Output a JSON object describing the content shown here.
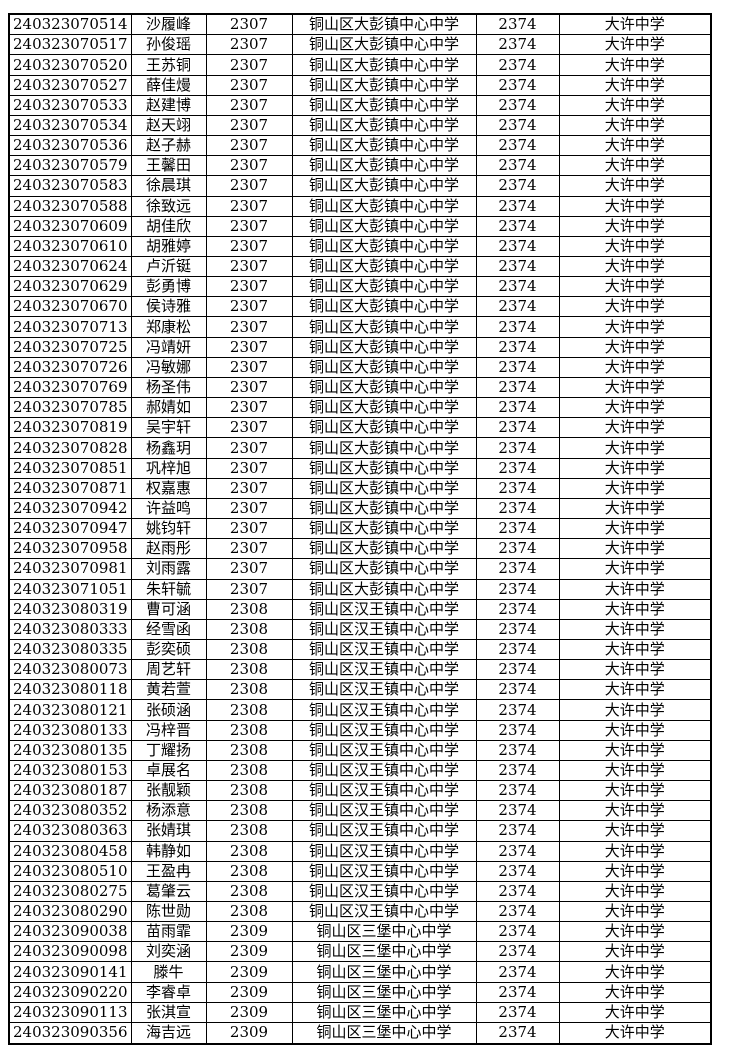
{
  "page": {
    "background_color": "#ffffff",
    "text_color": "#000000",
    "border_color": "#000000"
  },
  "table": {
    "column_keys": [
      "exam-number",
      "student-name",
      "school-code",
      "school-name",
      "destination-code",
      "destination-school"
    ],
    "rows": [
      [
        "240323070514",
        "沙履峰",
        "2307",
        "铜山区大彭镇中心中学",
        "2374",
        "大许中学"
      ],
      [
        "240323070517",
        "孙俊瑶",
        "2307",
        "铜山区大彭镇中心中学",
        "2374",
        "大许中学"
      ],
      [
        "240323070520",
        "王苏铜",
        "2307",
        "铜山区大彭镇中心中学",
        "2374",
        "大许中学"
      ],
      [
        "240323070527",
        "薛佳熳",
        "2307",
        "铜山区大彭镇中心中学",
        "2374",
        "大许中学"
      ],
      [
        "240323070533",
        "赵建博",
        "2307",
        "铜山区大彭镇中心中学",
        "2374",
        "大许中学"
      ],
      [
        "240323070534",
        "赵天翊",
        "2307",
        "铜山区大彭镇中心中学",
        "2374",
        "大许中学"
      ],
      [
        "240323070536",
        "赵子赫",
        "2307",
        "铜山区大彭镇中心中学",
        "2374",
        "大许中学"
      ],
      [
        "240323070579",
        "王馨田",
        "2307",
        "铜山区大彭镇中心中学",
        "2374",
        "大许中学"
      ],
      [
        "240323070583",
        "徐晨琪",
        "2307",
        "铜山区大彭镇中心中学",
        "2374",
        "大许中学"
      ],
      [
        "240323070588",
        "徐致远",
        "2307",
        "铜山区大彭镇中心中学",
        "2374",
        "大许中学"
      ],
      [
        "240323070609",
        "胡佳欣",
        "2307",
        "铜山区大彭镇中心中学",
        "2374",
        "大许中学"
      ],
      [
        "240323070610",
        "胡雅婷",
        "2307",
        "铜山区大彭镇中心中学",
        "2374",
        "大许中学"
      ],
      [
        "240323070624",
        "卢沂铤",
        "2307",
        "铜山区大彭镇中心中学",
        "2374",
        "大许中学"
      ],
      [
        "240323070629",
        "彭勇博",
        "2307",
        "铜山区大彭镇中心中学",
        "2374",
        "大许中学"
      ],
      [
        "240323070670",
        "侯诗雅",
        "2307",
        "铜山区大彭镇中心中学",
        "2374",
        "大许中学"
      ],
      [
        "240323070713",
        "郑康松",
        "2307",
        "铜山区大彭镇中心中学",
        "2374",
        "大许中学"
      ],
      [
        "240323070725",
        "冯靖妍",
        "2307",
        "铜山区大彭镇中心中学",
        "2374",
        "大许中学"
      ],
      [
        "240323070726",
        "冯敏娜",
        "2307",
        "铜山区大彭镇中心中学",
        "2374",
        "大许中学"
      ],
      [
        "240323070769",
        "杨圣伟",
        "2307",
        "铜山区大彭镇中心中学",
        "2374",
        "大许中学"
      ],
      [
        "240323070785",
        "郝婧如",
        "2307",
        "铜山区大彭镇中心中学",
        "2374",
        "大许中学"
      ],
      [
        "240323070819",
        "吴宇轩",
        "2307",
        "铜山区大彭镇中心中学",
        "2374",
        "大许中学"
      ],
      [
        "240323070828",
        "杨鑫玥",
        "2307",
        "铜山区大彭镇中心中学",
        "2374",
        "大许中学"
      ],
      [
        "240323070851",
        "巩梓旭",
        "2307",
        "铜山区大彭镇中心中学",
        "2374",
        "大许中学"
      ],
      [
        "240323070871",
        "权嘉惠",
        "2307",
        "铜山区大彭镇中心中学",
        "2374",
        "大许中学"
      ],
      [
        "240323070942",
        "许益鸣",
        "2307",
        "铜山区大彭镇中心中学",
        "2374",
        "大许中学"
      ],
      [
        "240323070947",
        "姚钧轩",
        "2307",
        "铜山区大彭镇中心中学",
        "2374",
        "大许中学"
      ],
      [
        "240323070958",
        "赵雨彤",
        "2307",
        "铜山区大彭镇中心中学",
        "2374",
        "大许中学"
      ],
      [
        "240323070981",
        "刘雨露",
        "2307",
        "铜山区大彭镇中心中学",
        "2374",
        "大许中学"
      ],
      [
        "240323071051",
        "朱轩毓",
        "2307",
        "铜山区大彭镇中心中学",
        "2374",
        "大许中学"
      ],
      [
        "240323080319",
        "曹可涵",
        "2308",
        "铜山区汉王镇中心中学",
        "2374",
        "大许中学"
      ],
      [
        "240323080333",
        "经雪函",
        "2308",
        "铜山区汉王镇中心中学",
        "2374",
        "大许中学"
      ],
      [
        "240323080335",
        "彭奕硕",
        "2308",
        "铜山区汉王镇中心中学",
        "2374",
        "大许中学"
      ],
      [
        "240323080073",
        "周艺轩",
        "2308",
        "铜山区汉王镇中心中学",
        "2374",
        "大许中学"
      ],
      [
        "240323080118",
        "黄若萱",
        "2308",
        "铜山区汉王镇中心中学",
        "2374",
        "大许中学"
      ],
      [
        "240323080121",
        "张硕涵",
        "2308",
        "铜山区汉王镇中心中学",
        "2374",
        "大许中学"
      ],
      [
        "240323080133",
        "冯梓晋",
        "2308",
        "铜山区汉王镇中心中学",
        "2374",
        "大许中学"
      ],
      [
        "240323080135",
        "丁耀扬",
        "2308",
        "铜山区汉王镇中心中学",
        "2374",
        "大许中学"
      ],
      [
        "240323080153",
        "卓展名",
        "2308",
        "铜山区汉王镇中心中学",
        "2374",
        "大许中学"
      ],
      [
        "240323080187",
        "张靓颖",
        "2308",
        "铜山区汉王镇中心中学",
        "2374",
        "大许中学"
      ],
      [
        "240323080352",
        "杨添意",
        "2308",
        "铜山区汉王镇中心中学",
        "2374",
        "大许中学"
      ],
      [
        "240323080363",
        "张婧琪",
        "2308",
        "铜山区汉王镇中心中学",
        "2374",
        "大许中学"
      ],
      [
        "240323080458",
        "韩静如",
        "2308",
        "铜山区汉王镇中心中学",
        "2374",
        "大许中学"
      ],
      [
        "240323080510",
        "王盈冉",
        "2308",
        "铜山区汉王镇中心中学",
        "2374",
        "大许中学"
      ],
      [
        "240323080275",
        "葛肇云",
        "2308",
        "铜山区汉王镇中心中学",
        "2374",
        "大许中学"
      ],
      [
        "240323080290",
        "陈世勋",
        "2308",
        "铜山区汉王镇中心中学",
        "2374",
        "大许中学"
      ],
      [
        "240323090038",
        "苗雨霏",
        "2309",
        "铜山区三堡中心中学",
        "2374",
        "大许中学"
      ],
      [
        "240323090098",
        "刘奕涵",
        "2309",
        "铜山区三堡中心中学",
        "2374",
        "大许中学"
      ],
      [
        "240323090141",
        "滕牛",
        "2309",
        "铜山区三堡中心中学",
        "2374",
        "大许中学"
      ],
      [
        "240323090220",
        "李睿卓",
        "2309",
        "铜山区三堡中心中学",
        "2374",
        "大许中学"
      ],
      [
        "240323090113",
        "张淇宣",
        "2309",
        "铜山区三堡中心中学",
        "2374",
        "大许中学"
      ],
      [
        "240323090356",
        "海吉远",
        "2309",
        "铜山区三堡中心中学",
        "2374",
        "大许中学"
      ]
    ]
  }
}
